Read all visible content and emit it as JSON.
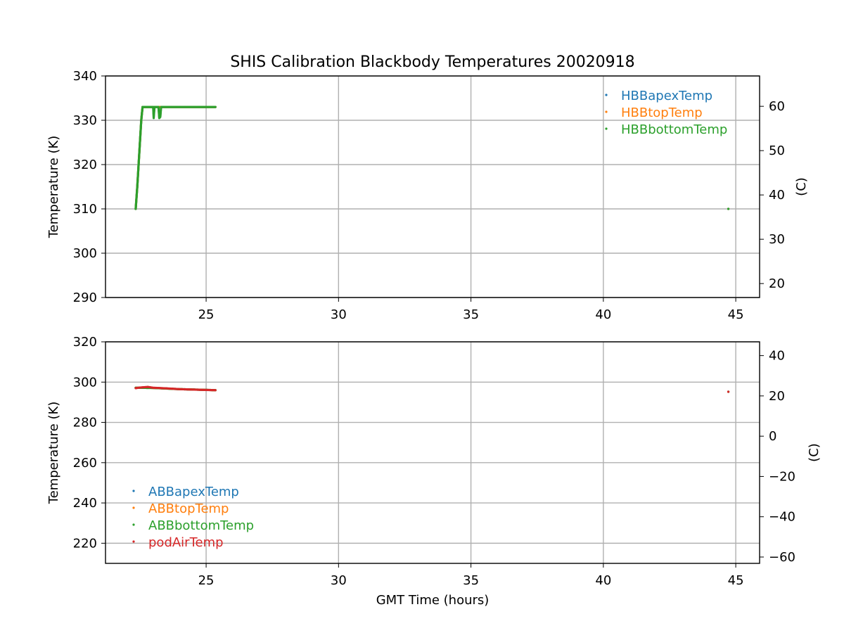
{
  "chart_data": {
    "title": "SHIS Calibration Blackbody Temperatures 20020918",
    "colors": {
      "blue": "#1f77b4",
      "orange": "#ff7f0e",
      "green": "#2ca02c",
      "red": "#d62728",
      "grid": "#b0b0b0"
    },
    "panels": [
      {
        "type": "scatter",
        "xlabel": "",
        "ylabel": "Temperature (K)",
        "ylabel_right": "(C)",
        "xlim": [
          21.2,
          45.9
        ],
        "ylim": [
          290,
          340
        ],
        "ylim_right_C": [
          16.85,
          66.85
        ],
        "xticks": [
          25,
          30,
          35,
          40,
          45
        ],
        "yticks": [
          290,
          300,
          310,
          320,
          330,
          340
        ],
        "yticks_right": [
          20,
          30,
          40,
          50,
          60
        ],
        "grid": true,
        "legend_position": "top-right",
        "series": [
          {
            "name": "HBBapexTemp",
            "color": "#1f77b4",
            "x": [
              22.34,
              22.4,
              22.45,
              22.5,
              22.55,
              22.6,
              22.65,
              22.7,
              22.8,
              22.9,
              23.0,
              23.2,
              23.5,
              24.0,
              24.5,
              25.0,
              25.35,
              44.72
            ],
            "y": [
              310,
              315,
              320,
              325,
              330,
              333,
              333,
              333,
              333,
              333,
              333,
              333,
              333,
              333,
              333,
              333,
              333,
              310
            ]
          },
          {
            "name": "HBBtopTemp",
            "color": "#ff7f0e",
            "x": [
              22.34,
              22.4,
              22.45,
              22.5,
              22.55,
              22.6,
              22.65,
              22.7,
              22.8,
              22.9,
              23.0,
              23.2,
              23.5,
              24.0,
              24.5,
              25.0,
              25.35,
              44.72
            ],
            "y": [
              310,
              315,
              320,
              325,
              330,
              333,
              333,
              333,
              333,
              333,
              333,
              333,
              333,
              333,
              333,
              333,
              333,
              310
            ]
          },
          {
            "name": "HBBbottomTemp",
            "color": "#2ca02c",
            "x": [
              22.34,
              22.4,
              22.45,
              22.5,
              22.55,
              22.6,
              22.65,
              22.7,
              22.8,
              22.9,
              23.0,
              23.02,
              23.05,
              23.08,
              23.2,
              23.23,
              23.27,
              23.3,
              23.5,
              24.0,
              24.5,
              25.0,
              25.35,
              44.72
            ],
            "y": [
              310,
              315,
              320,
              325,
              330,
              333,
              333,
              333,
              333,
              333,
              333,
              330.5,
              333,
              333,
              333,
              330.5,
              330.8,
              333,
              333,
              333,
              333,
              333,
              333,
              310
            ]
          }
        ]
      },
      {
        "type": "scatter",
        "xlabel": "GMT Time (hours)",
        "ylabel": "Temperature (K)",
        "ylabel_right": "(C)",
        "xlim": [
          21.2,
          45.9
        ],
        "ylim": [
          210,
          320
        ],
        "ylim_right_C": [
          -63.15,
          46.85
        ],
        "xticks": [
          25,
          30,
          35,
          40,
          45
        ],
        "yticks": [
          220,
          240,
          260,
          280,
          300,
          320
        ],
        "yticks_right": [
          -60,
          -40,
          -20,
          0,
          20,
          40
        ],
        "grid": true,
        "legend_position": "lower-left",
        "series": [
          {
            "name": "ABBapexTemp",
            "color": "#1f77b4",
            "x": [
              22.34,
              23.0,
              24.0,
              25.35,
              44.72
            ],
            "y": [
              297.2,
              297.1,
              296.5,
              296.0,
              295.2
            ]
          },
          {
            "name": "ABBtopTemp",
            "color": "#ff7f0e",
            "x": [
              22.34,
              23.0,
              24.0,
              25.35,
              44.72
            ],
            "y": [
              297.2,
              297.1,
              296.5,
              296.0,
              295.2
            ]
          },
          {
            "name": "ABBbottomTemp",
            "color": "#2ca02c",
            "x": [
              22.34,
              23.0,
              24.0,
              25.35,
              44.72
            ],
            "y": [
              297.2,
              297.1,
              296.5,
              296.0,
              295.2
            ]
          },
          {
            "name": "podAirTemp",
            "color": "#d62728",
            "x": [
              22.34,
              22.5,
              22.8,
              23.0,
              23.5,
              24.0,
              24.5,
              25.0,
              25.35,
              44.72
            ],
            "y": [
              297.0,
              297.3,
              297.6,
              297.2,
              296.9,
              296.5,
              296.3,
              296.1,
              296.0,
              295.2
            ]
          }
        ]
      }
    ]
  }
}
